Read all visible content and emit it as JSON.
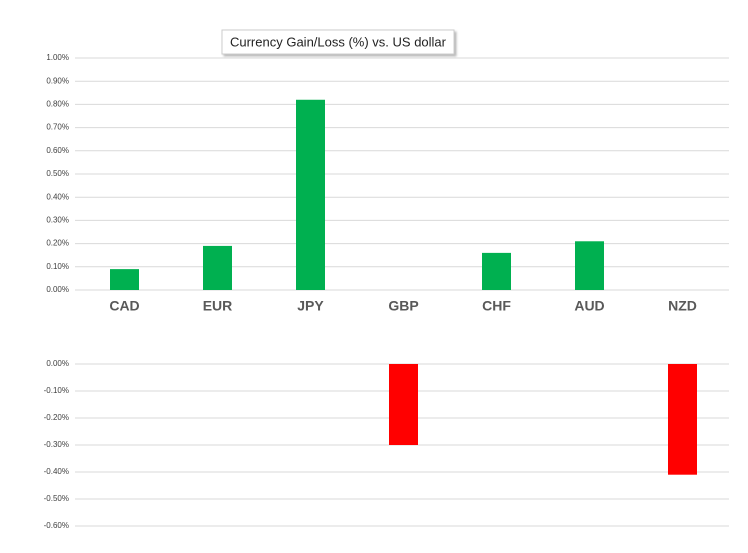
{
  "chart_data": [
    {
      "type": "bar",
      "title": "Currency  Gain/Loss (%) vs. US dollar",
      "categories": [
        "CAD",
        "EUR",
        "JPY",
        "GBP",
        "CHF",
        "AUD",
        "NZD"
      ],
      "values": [
        0.09,
        0.19,
        0.82,
        null,
        0.16,
        0.21,
        null
      ],
      "color": "#00b050",
      "ylim": [
        0,
        1
      ],
      "grid": true,
      "yticks": [
        {
          "value": 0,
          "label": "0.00%"
        },
        {
          "value": 0.1,
          "label": "0.10%"
        },
        {
          "value": 0.2,
          "label": "0.20%"
        },
        {
          "value": 0.3,
          "label": "0.30%"
        },
        {
          "value": 0.4,
          "label": "0.40%"
        },
        {
          "value": 0.5,
          "label": "0.50%"
        },
        {
          "value": 0.6,
          "label": "0.60%"
        },
        {
          "value": 0.7,
          "label": "0.70%"
        },
        {
          "value": 0.8,
          "label": "0.80%"
        },
        {
          "value": 0.9,
          "label": "0.90%"
        },
        {
          "value": 1,
          "label": "1.00%"
        }
      ]
    },
    {
      "type": "bar",
      "values": [
        null,
        null,
        null,
        -0.3,
        null,
        null,
        -0.41
      ],
      "color": "#ff0000",
      "ylim": [
        -0.6,
        0
      ],
      "grid": true,
      "yticks": [
        {
          "value": 0,
          "label": "0.00%"
        },
        {
          "value": -0.1,
          "label": "-0.10%"
        },
        {
          "value": -0.2,
          "label": "-0.20%"
        },
        {
          "value": -0.3,
          "label": "-0.30%"
        },
        {
          "value": -0.4,
          "label": "-0.40%"
        },
        {
          "value": -0.5,
          "label": "-0.50%"
        },
        {
          "value": -0.6,
          "label": "-0.60%"
        }
      ]
    }
  ]
}
